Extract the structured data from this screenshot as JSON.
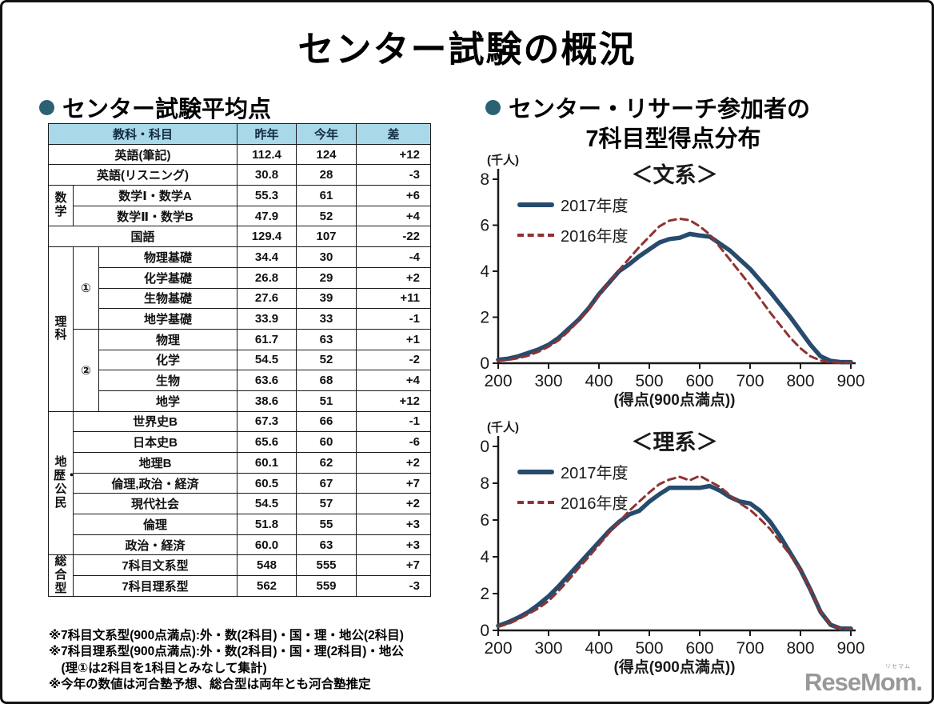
{
  "page": {
    "title": "センター試験の概況",
    "logo_text": "ReseMom.",
    "logo_furigana": "リセマム"
  },
  "left": {
    "heading": "センター試験平均点",
    "table": {
      "headers": {
        "subject": "教科・科目",
        "last_year": "昨年",
        "this_year": "今年",
        "diff": "差"
      },
      "groups": {
        "math": "数学",
        "science": "理科",
        "sci1": "①",
        "sci2": "②",
        "geo_civics": "地歴・公民",
        "sougou": "総合型"
      },
      "rows": [
        {
          "subject": "英語(筆記)",
          "last": "112.4",
          "this": "124",
          "diff": "+12"
        },
        {
          "subject": "英語(リスニング)",
          "last": "30.8",
          "this": "28",
          "diff": "-3"
        },
        {
          "subject": "数学Ⅰ・数学A",
          "last": "55.3",
          "this": "61",
          "diff": "+6"
        },
        {
          "subject": "数学Ⅱ・数学B",
          "last": "47.9",
          "this": "52",
          "diff": "+4"
        },
        {
          "subject": "国語",
          "last": "129.4",
          "this": "107",
          "diff": "-22"
        },
        {
          "subject": "物理基礎",
          "last": "34.4",
          "this": "30",
          "diff": "-4"
        },
        {
          "subject": "化学基礎",
          "last": "26.8",
          "this": "29",
          "diff": "+2"
        },
        {
          "subject": "生物基礎",
          "last": "27.6",
          "this": "39",
          "diff": "+11"
        },
        {
          "subject": "地学基礎",
          "last": "33.9",
          "this": "33",
          "diff": "-1"
        },
        {
          "subject": "物理",
          "last": "61.7",
          "this": "63",
          "diff": "+1"
        },
        {
          "subject": "化学",
          "last": "54.5",
          "this": "52",
          "diff": "-2"
        },
        {
          "subject": "生物",
          "last": "63.6",
          "this": "68",
          "diff": "+4"
        },
        {
          "subject": "地学",
          "last": "38.6",
          "this": "51",
          "diff": "+12"
        },
        {
          "subject": "世界史B",
          "last": "67.3",
          "this": "66",
          "diff": "-1"
        },
        {
          "subject": "日本史B",
          "last": "65.6",
          "this": "60",
          "diff": "-6"
        },
        {
          "subject": "地理B",
          "last": "60.1",
          "this": "62",
          "diff": "+2"
        },
        {
          "subject": "倫理,政治・経済",
          "last": "60.5",
          "this": "67",
          "diff": "+7"
        },
        {
          "subject": "現代社会",
          "last": "54.5",
          "this": "57",
          "diff": "+2"
        },
        {
          "subject": "倫理",
          "last": "51.8",
          "this": "55",
          "diff": "+3"
        },
        {
          "subject": "政治・経済",
          "last": "60.0",
          "this": "63",
          "diff": "+3"
        },
        {
          "subject": "7科目文系型",
          "last": "548",
          "this": "555",
          "diff": "+7"
        },
        {
          "subject": "7科目理系型",
          "last": "562",
          "this": "559",
          "diff": "-3"
        }
      ]
    },
    "footnotes": [
      "※7科目文系型(900点満点):外・数(2科目)・国・理・地公(2科目)",
      "※7科目理系型(900点満点):外・数(2科目)・国・理(2科目)・地公",
      "　(理①は2科目を1科目とみなして集計)",
      "※今年の数値は河合塾予想、総合型は両年とも河合塾推定"
    ]
  },
  "right": {
    "heading_line1": "センター・リサーチ参加者の",
    "heading_line2": "7科目型得点分布"
  },
  "colors": {
    "accent_bullet": "#2a6273",
    "table_header_bg": "#a9d9e9",
    "series_2017": "#274b6d",
    "series_2016": "#8e3331",
    "logo_gray": "#989898"
  },
  "chart_data": [
    {
      "type": "line",
      "title": "＜文系＞",
      "unit_label": "(千人)",
      "xlabel": "(得点(900点満点))",
      "ylim": [
        0,
        8
      ],
      "yticks": [
        0,
        2,
        4,
        6,
        8
      ],
      "xticks": [
        200,
        300,
        400,
        500,
        600,
        700,
        800,
        900
      ],
      "grid": false,
      "legend_position": "top-left",
      "x": [
        200,
        220,
        240,
        260,
        280,
        300,
        320,
        340,
        360,
        380,
        400,
        420,
        440,
        460,
        480,
        500,
        520,
        540,
        560,
        580,
        600,
        620,
        640,
        660,
        680,
        700,
        720,
        740,
        760,
        780,
        800,
        820,
        840,
        860,
        880,
        900
      ],
      "series": [
        {
          "name": "2017年度",
          "color": "#274b6d",
          "style": "solid",
          "values": [
            0.15,
            0.2,
            0.3,
            0.45,
            0.6,
            0.8,
            1.1,
            1.5,
            1.9,
            2.4,
            3.0,
            3.5,
            4.0,
            4.3,
            4.65,
            4.95,
            5.25,
            5.4,
            5.45,
            5.62,
            5.55,
            5.5,
            5.2,
            4.9,
            4.5,
            4.1,
            3.6,
            3.1,
            2.55,
            2.0,
            1.4,
            0.8,
            0.3,
            0.1,
            0.05,
            0.05
          ]
        },
        {
          "name": "2016年度",
          "color": "#8e3331",
          "style": "dashed",
          "values": [
            0.1,
            0.15,
            0.22,
            0.33,
            0.5,
            0.72,
            1.0,
            1.4,
            1.85,
            2.35,
            2.95,
            3.5,
            4.05,
            4.55,
            5.05,
            5.5,
            5.95,
            6.2,
            6.28,
            6.22,
            5.95,
            5.6,
            5.05,
            4.5,
            3.95,
            3.4,
            2.8,
            2.2,
            1.65,
            1.1,
            0.65,
            0.3,
            0.12,
            0.04,
            0.03,
            0.03
          ]
        }
      ]
    },
    {
      "type": "line",
      "title": "＜理系＞",
      "unit_label": "(千人)",
      "xlabel": "(得点(900点満点))",
      "ylim": [
        0,
        10
      ],
      "yticks": [
        0,
        2,
        4,
        6,
        8,
        10
      ],
      "xticks": [
        200,
        300,
        400,
        500,
        600,
        700,
        800,
        900
      ],
      "grid": false,
      "legend_position": "top-left",
      "x": [
        200,
        220,
        240,
        260,
        280,
        300,
        320,
        340,
        360,
        380,
        400,
        420,
        440,
        460,
        480,
        500,
        520,
        540,
        560,
        580,
        600,
        620,
        640,
        660,
        680,
        700,
        720,
        740,
        760,
        780,
        800,
        820,
        840,
        860,
        880,
        900
      ],
      "series": [
        {
          "name": "2017年度",
          "color": "#274b6d",
          "style": "solid",
          "values": [
            0.25,
            0.45,
            0.7,
            1.0,
            1.4,
            1.85,
            2.4,
            3.0,
            3.6,
            4.2,
            4.8,
            5.4,
            5.9,
            6.3,
            6.5,
            7.0,
            7.4,
            7.75,
            7.75,
            7.75,
            7.75,
            7.85,
            7.6,
            7.25,
            7.0,
            6.9,
            6.5,
            5.9,
            5.1,
            4.2,
            3.3,
            2.2,
            1.0,
            0.3,
            0.1,
            0.1
          ]
        },
        {
          "name": "2016年度",
          "color": "#8e3331",
          "style": "dashed",
          "values": [
            0.2,
            0.35,
            0.6,
            0.9,
            1.2,
            1.6,
            2.15,
            2.75,
            3.4,
            4.0,
            4.65,
            5.3,
            5.9,
            6.5,
            7.0,
            7.5,
            7.95,
            8.2,
            8.35,
            8.15,
            8.4,
            8.1,
            7.8,
            7.35,
            6.9,
            6.55,
            6.05,
            5.5,
            4.8,
            4.1,
            3.3,
            2.2,
            1.0,
            0.3,
            0.1,
            0.1
          ]
        }
      ]
    }
  ]
}
